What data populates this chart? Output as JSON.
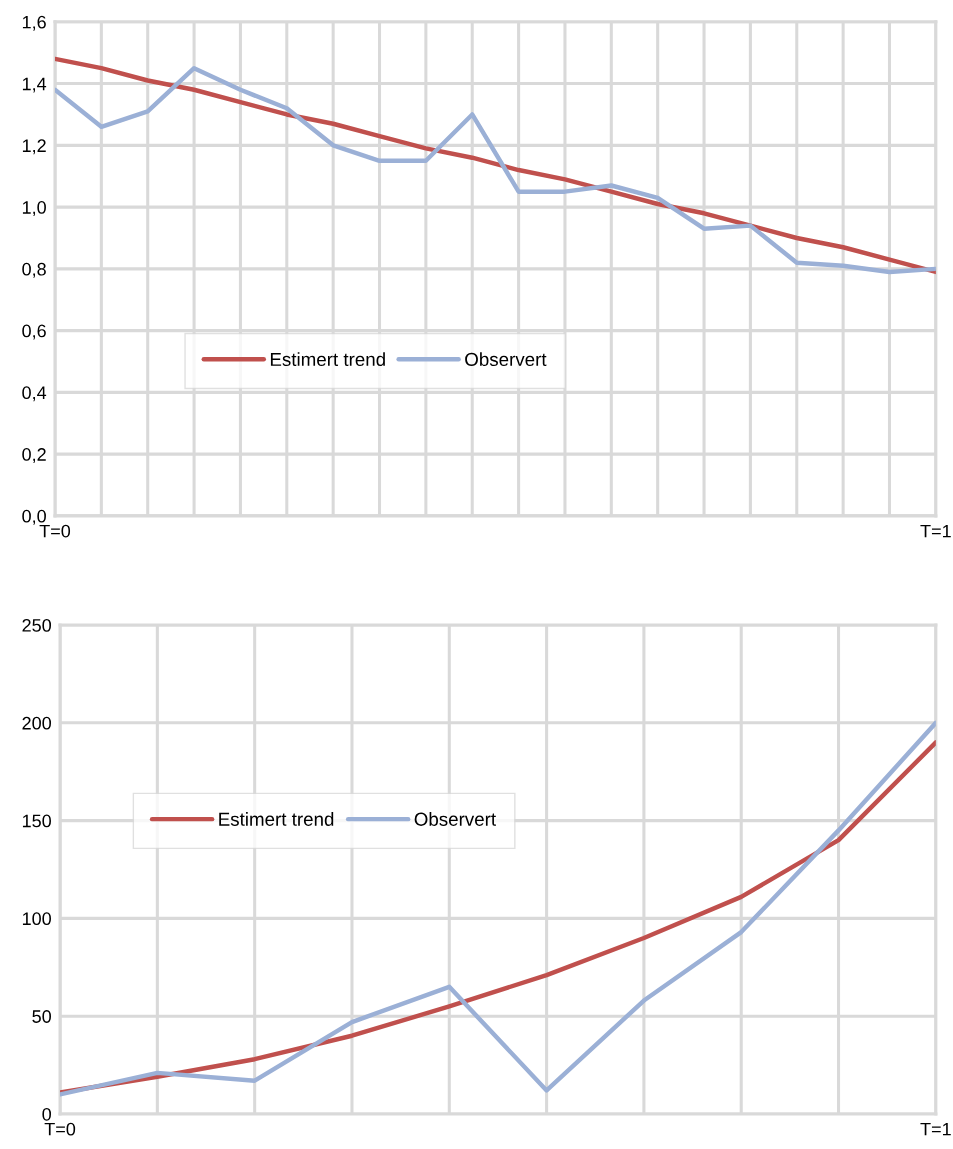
{
  "chart_data": [
    {
      "type": "line",
      "categories": [
        "T=0",
        null,
        null,
        null,
        null,
        null,
        null,
        null,
        null,
        null,
        null,
        null,
        null,
        null,
        null,
        null,
        null,
        null,
        null,
        "T=1"
      ],
      "series": [
        {
          "name": "Estimert trend",
          "color": "#c0504d",
          "values": [
            1.48,
            1.45,
            1.41,
            1.38,
            1.34,
            1.3,
            1.27,
            1.23,
            1.19,
            1.16,
            1.12,
            1.09,
            1.05,
            1.01,
            0.98,
            0.94,
            0.9,
            0.87,
            0.83,
            0.79
          ]
        },
        {
          "name": "Observert",
          "color": "#9bb0d6",
          "values": [
            1.38,
            1.26,
            1.31,
            1.45,
            1.38,
            1.32,
            1.2,
            1.15,
            1.15,
            1.3,
            1.05,
            1.05,
            1.07,
            1.03,
            0.93,
            0.94,
            0.82,
            0.81,
            0.79,
            0.8
          ]
        }
      ],
      "ylim": [
        0,
        1.6
      ],
      "yticks": [
        {
          "value": 0,
          "label": "0,0"
        },
        {
          "value": 0.2,
          "label": "0,2"
        },
        {
          "value": 0.4,
          "label": "0,4"
        },
        {
          "value": 0.6,
          "label": "0,6"
        },
        {
          "value": 0.8,
          "label": "0,8"
        },
        {
          "value": 1.0,
          "label": "1,0"
        },
        {
          "value": 1.2,
          "label": "1,2"
        },
        {
          "value": 1.4,
          "label": "1,4"
        },
        {
          "value": 1.6,
          "label": "1,6"
        }
      ],
      "grid": true,
      "legend": "center left",
      "marker": "none",
      "line_style": "solid"
    },
    {
      "type": "line",
      "categories": [
        "T=0",
        null,
        null,
        null,
        null,
        null,
        null,
        null,
        null,
        "T=1"
      ],
      "series": [
        {
          "name": "Estimert trend",
          "color": "#c0504d",
          "values": [
            11,
            19,
            28,
            40,
            55,
            71,
            90,
            111,
            140,
            190
          ]
        },
        {
          "name": "Observert",
          "color": "#9bb0d6",
          "values": [
            10,
            21,
            17,
            47,
            65,
            12,
            58,
            93,
            145,
            200
          ]
        }
      ],
      "ylim": [
        0,
        250
      ],
      "yticks": [
        0,
        50,
        100,
        150,
        200,
        250
      ],
      "grid": true,
      "legend": "center left",
      "marker": "none",
      "line_style": "solid"
    }
  ]
}
